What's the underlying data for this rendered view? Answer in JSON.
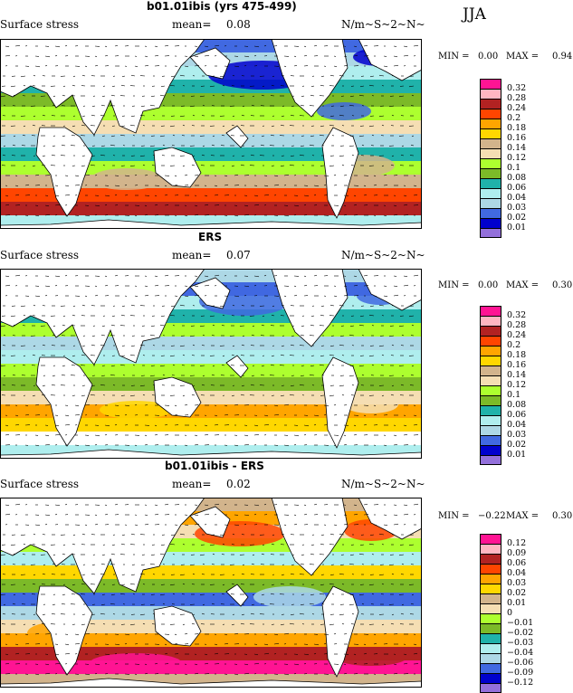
{
  "season": "JJA",
  "legend_a": {
    "colors": [
      "#ff1493",
      "#ffb6c1",
      "#b22222",
      "#ff4500",
      "#ffa500",
      "#ffd700",
      "#d2b48c",
      "#f5deb3",
      "#adff2f",
      "#7cba28",
      "#20b2aa",
      "#afeeee",
      "#add8e6",
      "#4169e1",
      "#0000cd",
      "#9370db"
    ],
    "labels": [
      "0.32",
      "0.28",
      "0.24",
      "0.2",
      "0.18",
      "0.16",
      "0.14",
      "0.12",
      "0.1",
      "0.08",
      "0.06",
      "0.04",
      "0.03",
      "0.02",
      "0.01"
    ]
  },
  "legend_b": {
    "colors": [
      "#ff1493",
      "#ffb6c1",
      "#b22222",
      "#ff4500",
      "#ffa500",
      "#ffd700",
      "#d2b48c",
      "#f5deb3",
      "#adff2f",
      "#7cba28",
      "#20b2aa",
      "#afeeee",
      "#add8e6",
      "#4169e1",
      "#0000cd",
      "#9370db"
    ],
    "labels": [
      "0.12",
      "0.09",
      "0.06",
      "0.04",
      "0.03",
      "0.02",
      "0.01",
      "0",
      "−0.01",
      "−0.02",
      "−0.03",
      "−0.04",
      "−0.06",
      "−0.09",
      "−0.12"
    ]
  },
  "panels": [
    {
      "title": "b01.01ibis (yrs 475-499)",
      "field": "Surface stress",
      "mean_label": "mean=",
      "mean": "0.08",
      "units": "N/m~S~2~N~",
      "min_label": "MIN =",
      "min": "0.00",
      "max_label": "MAX =",
      "max": "0.94",
      "legend": "a"
    },
    {
      "title": "ERS",
      "field": "Surface stress",
      "mean_label": "mean=",
      "mean": "0.07",
      "units": "N/m~S~2~N~",
      "min_label": "MIN =",
      "min": "0.00",
      "max_label": "MAX =",
      "max": "0.30",
      "legend": "a"
    },
    {
      "title": "b01.01ibis - ERS",
      "field": "Surface stress",
      "mean_label": "mean=",
      "mean": "0.02",
      "units": "N/m~S~2~N~",
      "min_label": "MIN =",
      "min": "−0.22",
      "max_label": "MAX =",
      "max": "0.30",
      "legend": "b"
    }
  ]
}
